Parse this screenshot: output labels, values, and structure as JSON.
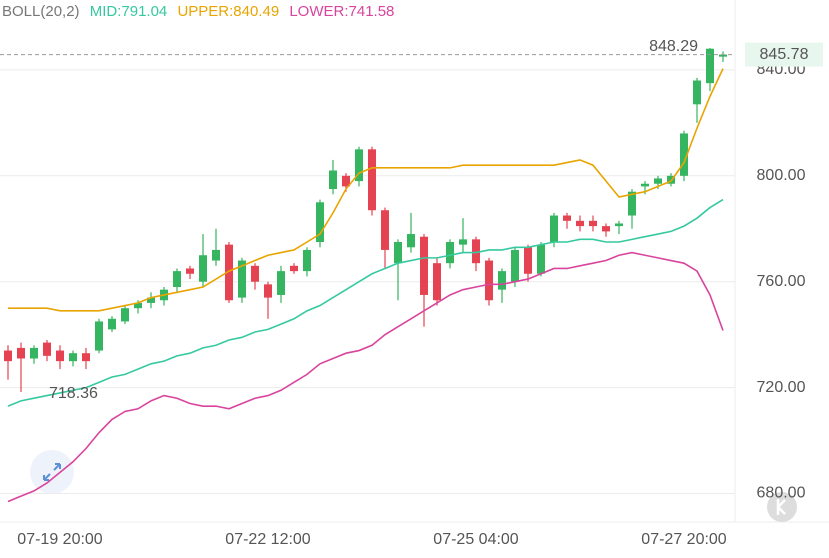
{
  "chart_data": {
    "type": "candlestick",
    "indicator": "BOLL(20,2)",
    "x": [
      null,
      null,
      null,
      null,
      "07-19 20:00",
      null,
      null,
      null,
      null,
      null,
      null,
      null,
      null,
      null,
      null,
      null,
      null,
      null,
      null,
      null,
      "07-22 12:00",
      null,
      null,
      null,
      null,
      null,
      null,
      null,
      null,
      null,
      null,
      null,
      null,
      null,
      null,
      null,
      "07-25 04:00",
      null,
      null,
      null,
      null,
      null,
      null,
      null,
      null,
      null,
      null,
      null,
      null,
      null,
      null,
      null,
      "07-27 20:00",
      null,
      null,
      null
    ],
    "open": [
      734,
      735,
      731,
      737,
      734,
      730,
      733,
      734,
      742,
      745,
      750,
      752,
      753,
      758,
      765,
      760,
      768,
      774,
      754,
      766,
      759,
      755,
      766,
      764,
      775,
      795,
      800,
      798,
      810,
      787,
      767,
      773,
      777,
      767,
      767,
      774,
      776,
      768,
      757,
      760,
      773,
      763,
      775,
      785,
      783,
      783,
      781,
      781,
      785,
      796,
      797,
      797,
      800,
      827,
      835,
      845
    ],
    "high": [
      736,
      737,
      736,
      738,
      736,
      734,
      735,
      746,
      747,
      751,
      753,
      756,
      758,
      765,
      766,
      778,
      780,
      775,
      769,
      767,
      760,
      766,
      767,
      773,
      791,
      806,
      801,
      811,
      811,
      788,
      776,
      786,
      778,
      769,
      776,
      784,
      777,
      769,
      765,
      773,
      774,
      775,
      786,
      786,
      785,
      785,
      782,
      783,
      795,
      798,
      800,
      801,
      817,
      837,
      848.29,
      847
    ],
    "low": [
      723,
      718.36,
      729,
      730,
      727,
      728,
      727,
      733,
      741,
      744,
      748,
      750,
      751,
      756,
      761,
      758,
      766,
      752,
      752,
      757,
      746,
      752,
      763,
      762,
      773,
      793,
      794,
      796,
      785,
      765,
      753,
      771,
      743,
      751,
      765,
      771,
      764,
      751,
      752,
      758,
      760,
      762,
      773,
      780,
      779,
      779,
      777,
      778,
      780,
      793,
      795,
      796,
      798,
      820,
      832,
      843
    ],
    "close": [
      730,
      731,
      735,
      732,
      730,
      733,
      730,
      745,
      746,
      750,
      752,
      754,
      757,
      764,
      763,
      770,
      772,
      753,
      768,
      760,
      754,
      764,
      764,
      772,
      790,
      802,
      796,
      810,
      787,
      772,
      775,
      778,
      755,
      753,
      775,
      776,
      767,
      753,
      764,
      772,
      763,
      774,
      785,
      783,
      781,
      781,
      779,
      782,
      794,
      797,
      799,
      800,
      816,
      836,
      848,
      845.78
    ],
    "up_color": "#35b55f",
    "down_color": "#e54352",
    "series": [
      {
        "name": "MID:791.04",
        "color": "#35c9a0",
        "values": [
          713,
          715,
          716,
          717,
          718,
          719,
          720,
          722,
          724,
          725,
          727,
          729,
          730,
          732,
          733,
          735,
          736,
          738,
          739,
          741,
          742,
          744,
          746,
          749,
          751,
          754,
          757,
          760,
          763,
          765,
          767,
          768,
          769,
          769,
          770,
          771,
          771,
          772,
          772,
          773,
          773,
          774,
          775,
          775,
          776,
          776,
          775,
          775,
          776,
          777,
          778,
          779,
          781,
          784,
          788,
          791.04
        ]
      },
      {
        "name": "UPPER:840.49",
        "color": "#e9a400",
        "values": [
          750,
          750,
          750,
          750,
          749,
          749,
          749,
          749,
          750,
          751,
          752,
          754,
          755,
          756,
          757,
          758,
          761,
          764,
          766,
          768,
          770,
          771,
          772,
          775,
          778,
          786,
          795,
          801,
          803,
          803,
          803,
          803,
          803,
          803,
          803,
          804,
          804,
          804,
          804,
          804,
          804,
          804,
          804,
          805,
          806,
          804,
          798,
          792,
          793,
          794,
          796,
          798,
          805,
          818,
          830,
          840.49
        ]
      },
      {
        "name": "LOWER:741.58",
        "color": "#d9449d",
        "values": [
          677,
          679,
          681,
          684,
          688,
          692,
          697,
          703,
          708,
          711,
          712,
          715,
          717,
          716,
          714,
          713,
          713,
          712,
          714,
          716,
          717,
          719,
          722,
          725,
          729,
          731,
          733,
          734,
          736,
          740,
          743,
          746,
          749,
          752,
          755,
          757,
          758,
          759,
          759,
          760,
          761,
          763,
          765,
          765,
          766,
          767,
          768,
          770,
          771,
          770,
          769,
          768,
          767,
          764,
          755,
          741.58
        ]
      }
    ],
    "high_annotation": {
      "value": 848.29,
      "index": 54
    },
    "low_annotation": {
      "value": 718.36,
      "index": 1
    },
    "last_price": 845.78,
    "ylim": [
      670,
      866.4
    ],
    "yticks": [
      {
        "value": 680,
        "label": "680.00"
      },
      {
        "value": 720,
        "label": "720.00"
      },
      {
        "value": 760,
        "label": "760.00"
      },
      {
        "value": 800,
        "label": "800.00"
      },
      {
        "value": 840,
        "label": "840.00"
      }
    ],
    "grid": true
  }
}
